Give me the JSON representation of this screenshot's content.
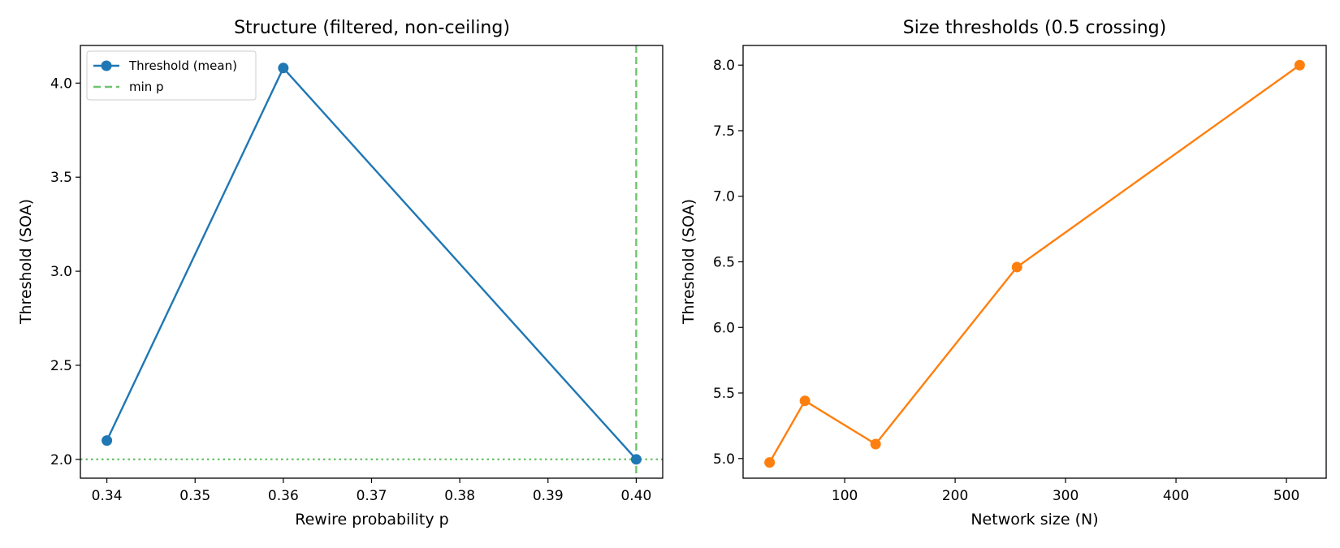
{
  "colors": {
    "blue": "#1f77b4",
    "orange": "#ff7f0e",
    "ref_green": "#6cc56c"
  },
  "chart_data": [
    {
      "type": "line",
      "title": "Structure (filtered, non-ceiling)",
      "xlabel": "Rewire probability p",
      "ylabel": "Threshold (SOA)",
      "xlim": [
        0.337,
        0.403
      ],
      "ylim": [
        1.9,
        4.2
      ],
      "xticks": [
        0.34,
        0.35,
        0.36,
        0.37,
        0.38,
        0.39,
        0.4
      ],
      "xtick_labels": [
        "0.34",
        "0.35",
        "0.36",
        "0.37",
        "0.38",
        "0.39",
        "0.40"
      ],
      "yticks": [
        2.0,
        2.5,
        3.0,
        3.5,
        4.0
      ],
      "ytick_labels": [
        "2.0",
        "2.5",
        "3.0",
        "3.5",
        "4.0"
      ],
      "series": [
        {
          "name": "Threshold (mean)",
          "color": "#1f77b4",
          "marker": "circle",
          "x": [
            0.34,
            0.36,
            0.4
          ],
          "y": [
            2.1,
            4.08,
            2.0
          ]
        }
      ],
      "reference_lines": [
        {
          "name": "min p",
          "orientation": "vertical",
          "value": 0.4,
          "style": "dashed",
          "color": "#6cc56c",
          "in_legend": true
        },
        {
          "name": "",
          "orientation": "horizontal",
          "value": 2.0,
          "style": "dotted",
          "color": "#6cc56c",
          "in_legend": false
        }
      ],
      "legend": {
        "position": "top-left",
        "entries": [
          "Threshold (mean)",
          "min p"
        ]
      },
      "grid": false
    },
    {
      "type": "line",
      "title": "Size thresholds (0.5 crossing)",
      "xlabel": "Network size (N)",
      "ylabel": "Threshold (SOA)",
      "xlim": [
        8,
        536
      ],
      "ylim": [
        4.85,
        8.15
      ],
      "xticks": [
        100,
        200,
        300,
        400,
        500
      ],
      "xtick_labels": [
        "100",
        "200",
        "300",
        "400",
        "500"
      ],
      "yticks": [
        5.0,
        5.5,
        6.0,
        6.5,
        7.0,
        7.5,
        8.0
      ],
      "ytick_labels": [
        "5.0",
        "5.5",
        "6.0",
        "6.5",
        "7.0",
        "7.5",
        "8.0"
      ],
      "series": [
        {
          "color": "#ff7f0e",
          "marker": "circle",
          "x": [
            32,
            64,
            128,
            256,
            512
          ],
          "y": [
            4.97,
            5.44,
            5.11,
            6.46,
            8.0
          ]
        }
      ],
      "reference_lines": [],
      "grid": false
    }
  ]
}
